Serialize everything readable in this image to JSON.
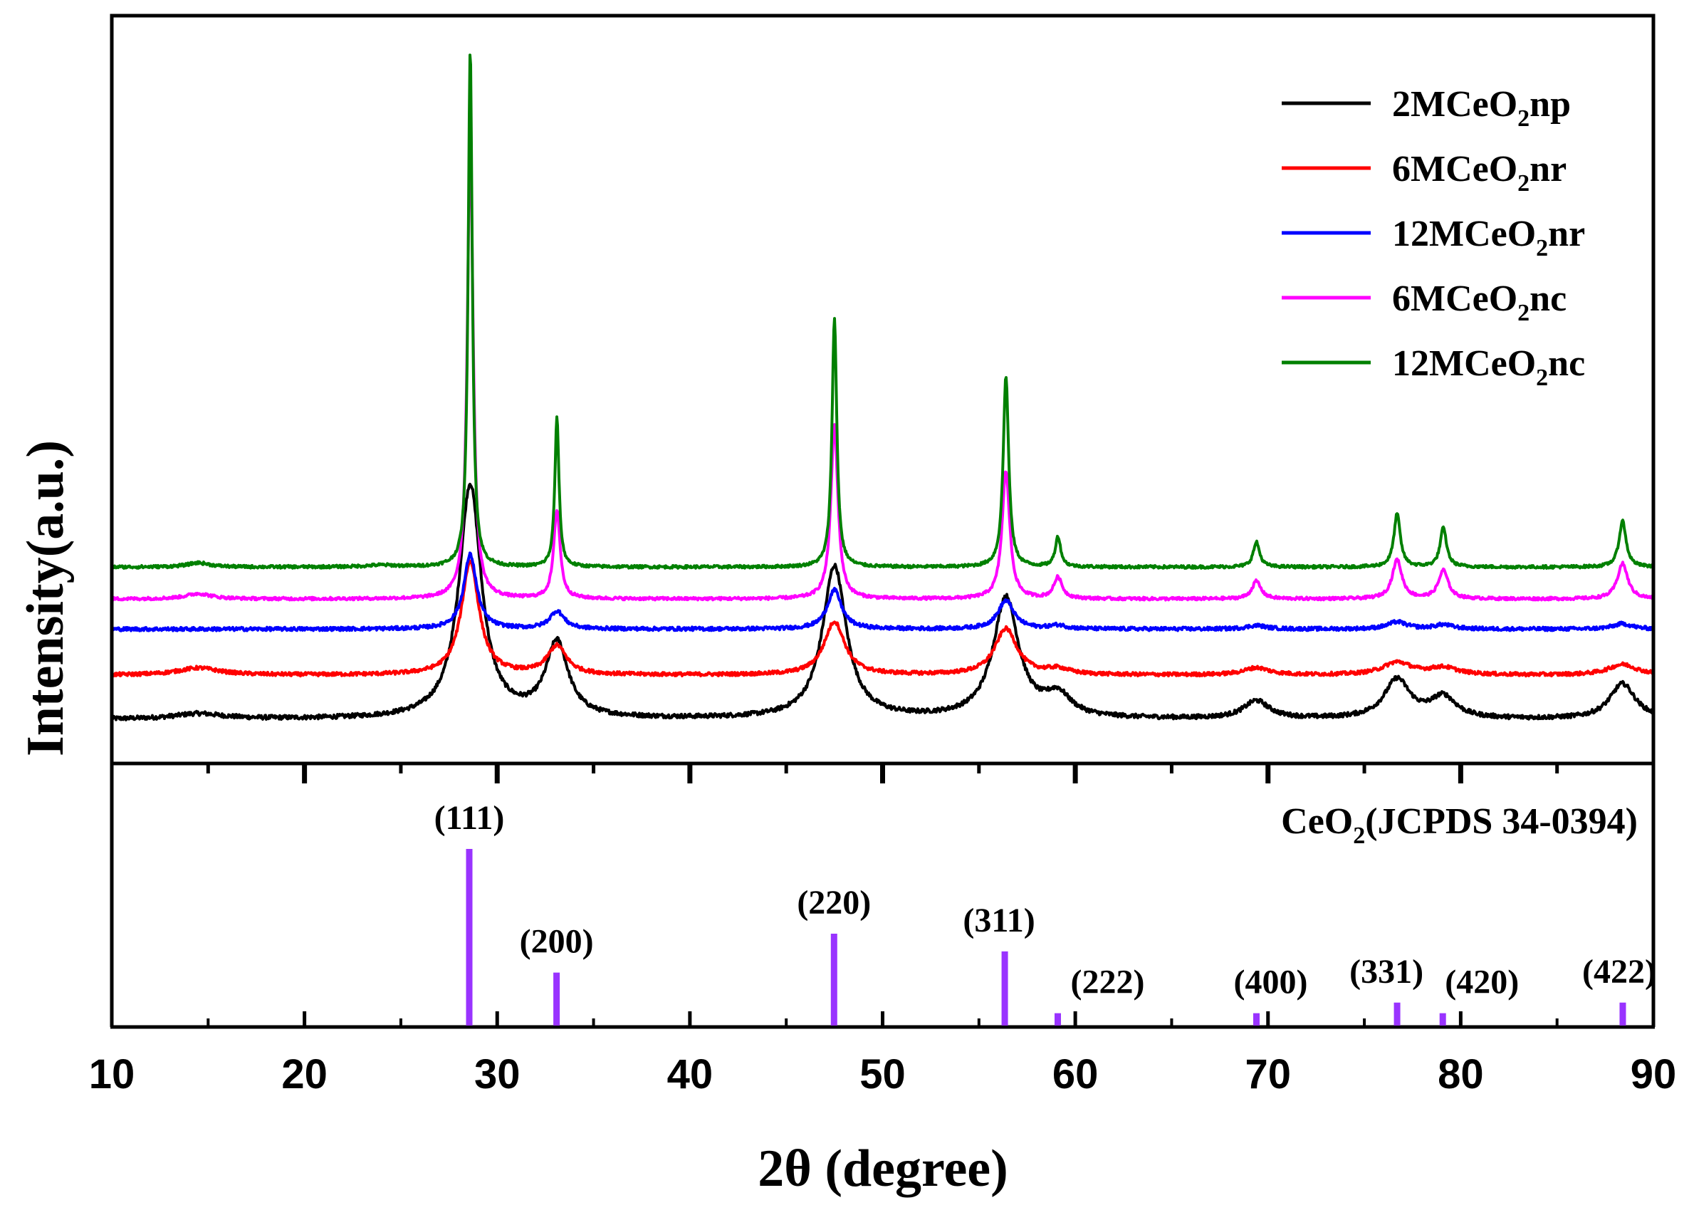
{
  "chart_data": {
    "type": "line",
    "xlabel": "2θ (degree)",
    "ylabel": "Intensity(a.u.)",
    "xlim": [
      10,
      90
    ],
    "x_ticks": [
      10,
      20,
      30,
      40,
      50,
      60,
      70,
      80,
      90
    ],
    "x_tick_labels": [
      "10",
      "20",
      "30",
      "40",
      "50",
      "60",
      "70",
      "80",
      "90"
    ],
    "legend_position": "top-right",
    "series": [
      {
        "name": "2MCeO2np",
        "label_main": "2MCeO",
        "label_sub": "2",
        "label_suffix": "np",
        "color": "#000000",
        "baseline": 1.0,
        "noise": 0.06,
        "peaks": [
          [
            28.6,
            6.6,
            0.7
          ],
          [
            33.1,
            2.1,
            0.7
          ],
          [
            47.5,
            4.3,
            0.75
          ],
          [
            56.4,
            3.4,
            0.8
          ],
          [
            59.1,
            0.6,
            0.8
          ],
          [
            69.4,
            0.5,
            0.8
          ],
          [
            76.7,
            1.1,
            0.8
          ],
          [
            79.1,
            0.6,
            0.8
          ],
          [
            88.4,
            1.0,
            0.8
          ],
          [
            14.5,
            0.15,
            1.5
          ]
        ]
      },
      {
        "name": "6MCeO2nr",
        "label_main": "6MCeO",
        "label_sub": "2",
        "label_suffix": "nr",
        "color": "#ff0000",
        "baseline": 2.25,
        "noise": 0.05,
        "peaks": [
          [
            28.6,
            3.2,
            0.55
          ],
          [
            33.1,
            0.8,
            0.6
          ],
          [
            47.5,
            1.5,
            0.65
          ],
          [
            56.4,
            1.3,
            0.7
          ],
          [
            59.1,
            0.15,
            0.7
          ],
          [
            69.4,
            0.2,
            0.8
          ],
          [
            76.7,
            0.35,
            0.9
          ],
          [
            79.1,
            0.2,
            0.9
          ],
          [
            88.4,
            0.3,
            0.9
          ],
          [
            14.5,
            0.2,
            1.3
          ]
        ]
      },
      {
        "name": "12MCeO2nr",
        "label_main": "12MCeO",
        "label_sub": "2",
        "label_suffix": "nr",
        "color": "#0000ff",
        "baseline": 3.55,
        "noise": 0.05,
        "peaks": [
          [
            28.6,
            2.1,
            0.4
          ],
          [
            33.1,
            0.5,
            0.45
          ],
          [
            47.5,
            1.1,
            0.45
          ],
          [
            56.4,
            0.8,
            0.5
          ],
          [
            59.1,
            0.1,
            0.5
          ],
          [
            69.4,
            0.1,
            0.6
          ],
          [
            76.7,
            0.2,
            0.6
          ],
          [
            79.1,
            0.12,
            0.6
          ],
          [
            88.4,
            0.15,
            0.6
          ]
        ]
      },
      {
        "name": "6MCeO2nc",
        "label_main": "6MCeO",
        "label_sub": "2",
        "label_suffix": "nc",
        "color": "#ff00ff",
        "baseline": 4.4,
        "noise": 0.04,
        "peaks": [
          [
            28.6,
            13.0,
            0.18
          ],
          [
            33.1,
            2.5,
            0.2
          ],
          [
            47.5,
            4.9,
            0.22
          ],
          [
            56.4,
            3.6,
            0.24
          ],
          [
            59.1,
            0.6,
            0.26
          ],
          [
            69.4,
            0.5,
            0.28
          ],
          [
            76.7,
            1.1,
            0.3
          ],
          [
            79.1,
            0.8,
            0.3
          ],
          [
            88.4,
            1.0,
            0.32
          ],
          [
            14.5,
            0.15,
            0.8
          ]
        ]
      },
      {
        "name": "12MCeO2nc",
        "label_main": "12MCeO",
        "label_sub": "2",
        "label_suffix": "nc",
        "color": "#008000",
        "baseline": 5.3,
        "noise": 0.04,
        "peaks": [
          [
            28.6,
            14.6,
            0.13
          ],
          [
            33.1,
            4.2,
            0.13
          ],
          [
            47.5,
            7.0,
            0.15
          ],
          [
            56.4,
            5.4,
            0.17
          ],
          [
            59.1,
            0.85,
            0.17
          ],
          [
            69.4,
            0.7,
            0.2
          ],
          [
            76.7,
            1.5,
            0.2
          ],
          [
            79.1,
            1.1,
            0.2
          ],
          [
            88.4,
            1.3,
            0.22
          ],
          [
            14.5,
            0.12,
            0.7
          ],
          [
            24.0,
            0.05,
            1.0
          ]
        ]
      }
    ],
    "y_range": [
      0,
      20.5
    ],
    "reference": {
      "title_main": "CeO",
      "title_sub": "2",
      "title_suffix": "(JCPDS 34-0394)",
      "color": "#9933ff",
      "lines": [
        {
          "label": "(111)",
          "x": 28.55,
          "intensity": 100
        },
        {
          "label": "(200)",
          "x": 33.08,
          "intensity": 30
        },
        {
          "label": "(220)",
          "x": 47.48,
          "intensity": 52
        },
        {
          "label": "(311)",
          "x": 56.34,
          "intensity": 42
        },
        {
          "label": "(222)",
          "x": 59.09,
          "intensity": 7
        },
        {
          "label": "(400)",
          "x": 69.4,
          "intensity": 7
        },
        {
          "label": "(331)",
          "x": 76.7,
          "intensity": 13
        },
        {
          "label": "(420)",
          "x": 79.07,
          "intensity": 7
        },
        {
          "label": "(422)",
          "x": 88.41,
          "intensity": 13
        }
      ]
    }
  }
}
